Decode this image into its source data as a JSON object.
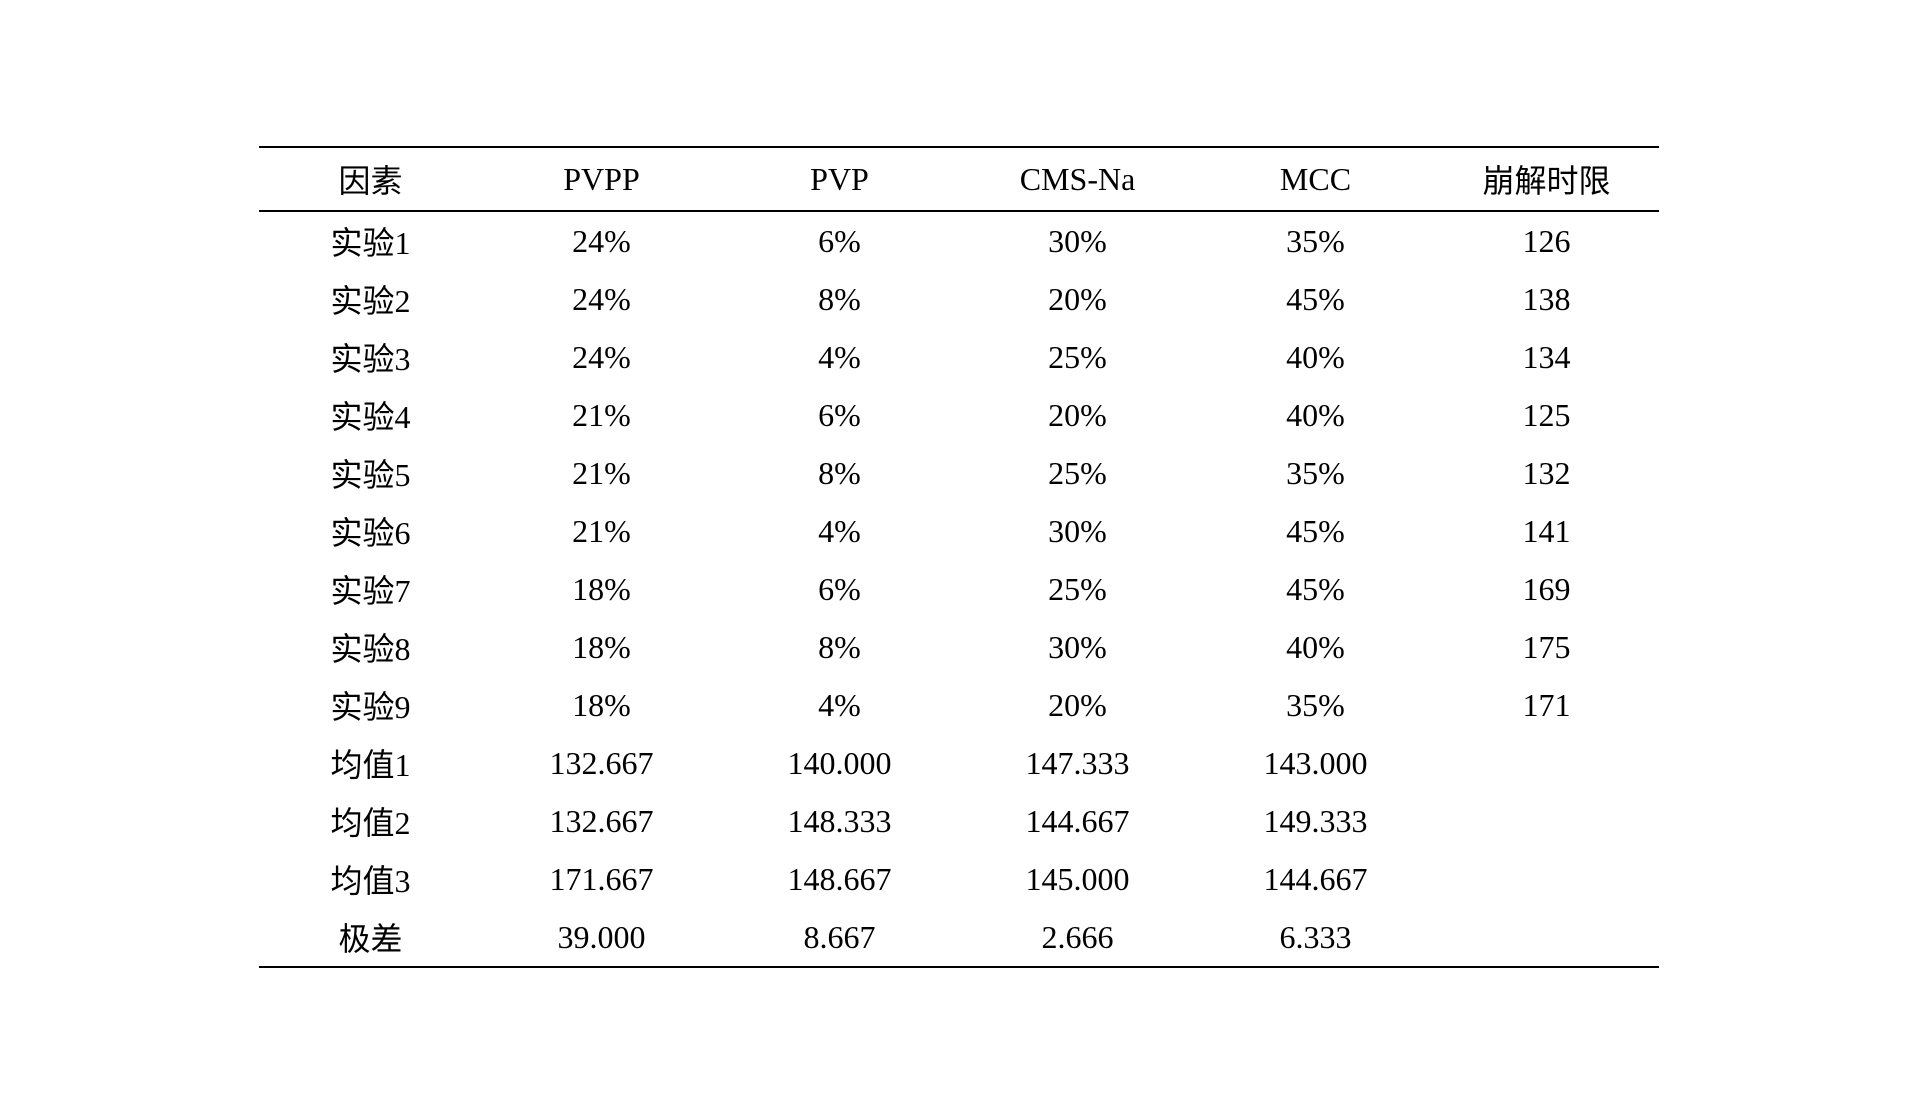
{
  "table": {
    "columns": [
      "因素",
      "PVPP",
      "PVP",
      "CMS-Na",
      "MCC",
      "崩解时限"
    ],
    "rows": [
      [
        "实验1",
        "24%",
        "6%",
        "30%",
        "35%",
        "126"
      ],
      [
        "实验2",
        "24%",
        "8%",
        "20%",
        "45%",
        "138"
      ],
      [
        "实验3",
        "24%",
        "4%",
        "25%",
        "40%",
        "134"
      ],
      [
        "实验4",
        "21%",
        "6%",
        "20%",
        "40%",
        "125"
      ],
      [
        "实验5",
        "21%",
        "8%",
        "25%",
        "35%",
        "132"
      ],
      [
        "实验6",
        "21%",
        "4%",
        "30%",
        "45%",
        "141"
      ],
      [
        "实验7",
        "18%",
        "6%",
        "25%",
        "45%",
        "169"
      ],
      [
        "实验8",
        "18%",
        "8%",
        "30%",
        "40%",
        "175"
      ],
      [
        "实验9",
        "18%",
        "4%",
        "20%",
        "35%",
        "171"
      ],
      [
        "均值1",
        "132.667",
        "140.000",
        "147.333",
        "143.000",
        ""
      ],
      [
        "均值2",
        "132.667",
        "148.333",
        "144.667",
        "149.333",
        ""
      ],
      [
        "均值3",
        "171.667",
        "148.667",
        "145.000",
        "144.667",
        ""
      ],
      [
        "极差",
        "39.000",
        "8.667",
        "2.666",
        "6.333",
        ""
      ]
    ],
    "styling": {
      "font_size": 32,
      "font_family": "SimSun, 宋体, Times New Roman, serif",
      "text_color": "#000000",
      "background_color": "#ffffff",
      "border_color": "#000000",
      "border_width": 2,
      "column_widths_pct": [
        16,
        17,
        17,
        17,
        17,
        16
      ],
      "row_padding_v": 6,
      "row_padding_h": 20,
      "header_border_top": true,
      "header_border_bottom": true,
      "body_border_bottom": true,
      "text_align": "center"
    }
  }
}
